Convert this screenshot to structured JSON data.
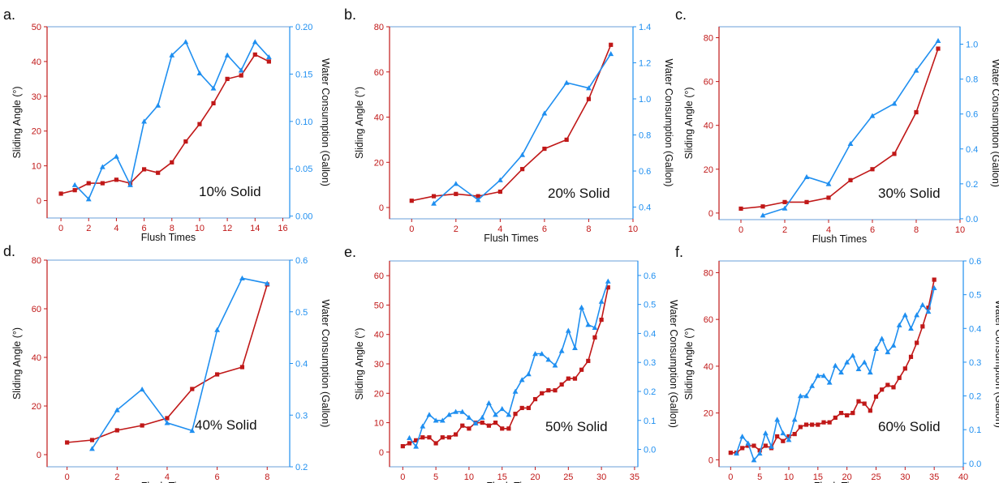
{
  "figure": {
    "colors": {
      "sliding": "#c01818",
      "water": "#1f8ff0",
      "left_axis": "#c01818",
      "right_axis": "#1f8ff0",
      "text": "#111111"
    }
  },
  "chart_data": [
    {
      "panel": "a.",
      "type": "line",
      "annotation": "10% Solid",
      "xlabel": "Flush Times",
      "ylabel": "Sliding Angle (°)",
      "y2label": "Water Consumption (Gallon)",
      "xlim": [
        -1,
        16.5
      ],
      "ylim": [
        -5,
        50
      ],
      "y2lim": [
        -0.002,
        0.2
      ],
      "xticks": [
        0,
        2,
        4,
        6,
        8,
        10,
        12,
        14,
        16
      ],
      "yticks": [
        0,
        10,
        20,
        30,
        40,
        50
      ],
      "y2ticks": [
        0.0,
        0.05,
        0.1,
        0.15,
        0.2
      ],
      "y2tick_labels": [
        "0.00",
        "0.05",
        "0.10",
        "0.15",
        "0.20"
      ],
      "series": [
        {
          "axis": "left",
          "marker": "square",
          "x": [
            0,
            1,
            2,
            3,
            4,
            5,
            6,
            7,
            8,
            9,
            10,
            11,
            12,
            13,
            14,
            15
          ],
          "y": [
            2,
            3,
            5,
            5,
            6,
            5,
            9,
            8,
            11,
            17,
            22,
            28,
            35,
            36,
            42,
            40
          ]
        },
        {
          "axis": "right",
          "marker": "triangle",
          "x": [
            1,
            2,
            3,
            4,
            5,
            6,
            7,
            8,
            9,
            10,
            11,
            12,
            13,
            14,
            15
          ],
          "y": [
            0.033,
            0.018,
            0.052,
            0.063,
            0.033,
            0.1,
            0.117,
            0.17,
            0.184,
            0.151,
            0.135,
            0.17,
            0.154,
            0.184,
            0.168
          ]
        }
      ]
    },
    {
      "panel": "b.",
      "type": "line",
      "annotation": "20% Solid",
      "xlabel": "Flush Times",
      "ylabel": "Sliding Angle (°)",
      "y2label": "Water Consumption (Gallon)",
      "xlim": [
        -1,
        10
      ],
      "ylim": [
        -5,
        80
      ],
      "y2lim": [
        0.335,
        1.4
      ],
      "xticks": [
        0,
        2,
        4,
        6,
        8,
        10
      ],
      "yticks": [
        0,
        20,
        40,
        60,
        80
      ],
      "y2ticks": [
        0.4,
        0.6,
        0.8,
        1.0,
        1.2,
        1.4
      ],
      "y2tick_labels": [
        "0.4",
        "0.6",
        "0.8",
        "1.0",
        "1.2",
        "1.4"
      ],
      "series": [
        {
          "axis": "left",
          "marker": "square",
          "x": [
            0,
            1,
            2,
            3,
            4,
            5,
            6,
            7,
            8,
            9
          ],
          "y": [
            3,
            5,
            6,
            5,
            7,
            17,
            26,
            30,
            48,
            72
          ]
        },
        {
          "axis": "right",
          "marker": "triangle",
          "x": [
            1,
            2,
            3,
            4,
            5,
            6,
            7,
            8,
            9
          ],
          "y": [
            0.42,
            0.53,
            0.44,
            0.55,
            0.69,
            0.92,
            1.09,
            1.06,
            1.25
          ]
        }
      ]
    },
    {
      "panel": "c.",
      "type": "line",
      "annotation": "30% Solid",
      "xlabel": "Flush Times",
      "ylabel": "Sliding Angle (°)",
      "y2label": "Water Consumption (Gallon)",
      "xlim": [
        -1,
        10
      ],
      "ylim": [
        -3,
        85
      ],
      "y2lim": [
        -0.005,
        1.1
      ],
      "xticks": [
        0,
        2,
        4,
        6,
        8,
        10
      ],
      "yticks": [
        0,
        20,
        40,
        60,
        80
      ],
      "y2ticks": [
        0.0,
        0.2,
        0.4,
        0.6,
        0.8,
        1.0
      ],
      "y2tick_labels": [
        "0.0",
        "0.2",
        "0.4",
        "0.6",
        "0.8",
        "1.0"
      ],
      "series": [
        {
          "axis": "left",
          "marker": "square",
          "x": [
            0,
            1,
            2,
            3,
            4,
            5,
            6,
            7,
            8,
            9
          ],
          "y": [
            2,
            3,
            5,
            5,
            7,
            15,
            20,
            27,
            46,
            75
          ]
        },
        {
          "axis": "right",
          "marker": "triangle",
          "x": [
            1,
            2,
            3,
            4,
            5,
            6,
            7,
            8,
            9
          ],
          "y": [
            0.02,
            0.06,
            0.24,
            0.2,
            0.43,
            0.59,
            0.66,
            0.85,
            1.02
          ]
        }
      ]
    },
    {
      "panel": "d.",
      "type": "line",
      "annotation": "40% Solid",
      "xlabel": "Flush Times",
      "ylabel": "Sliding Angle (°)",
      "y2label": "Water Consumption (Gallon)",
      "xlim": [
        -0.8,
        8.9
      ],
      "ylim": [
        -5,
        80
      ],
      "y2lim": [
        0.2,
        0.6
      ],
      "xticks": [
        0,
        2,
        4,
        6,
        8
      ],
      "yticks": [
        0,
        20,
        40,
        60,
        80
      ],
      "y2ticks": [
        0.2,
        0.3,
        0.4,
        0.5,
        0.6
      ],
      "y2tick_labels": [
        "0.2",
        "0.3",
        "0.4",
        "0.5",
        "0.6"
      ],
      "series": [
        {
          "axis": "left",
          "marker": "square",
          "x": [
            0,
            1,
            2,
            3,
            4,
            5,
            6,
            7,
            8
          ],
          "y": [
            5,
            6,
            10,
            12,
            15,
            27,
            33,
            36,
            70
          ]
        },
        {
          "axis": "right",
          "marker": "triangle",
          "x": [
            1,
            2,
            3,
            4,
            5,
            6,
            7,
            8
          ],
          "y": [
            0.235,
            0.31,
            0.35,
            0.285,
            0.27,
            0.465,
            0.565,
            0.555
          ]
        }
      ]
    },
    {
      "panel": "e.",
      "type": "line",
      "annotation": "50% Solid",
      "xlabel": "Flush Times",
      "ylabel": "Sliding Angle (°)",
      "y2label": "Water Consumption (Gallon)",
      "xlim": [
        -2,
        35.5
      ],
      "ylim": [
        -5,
        65
      ],
      "y2lim": [
        -0.06,
        0.65
      ],
      "xticks": [
        0,
        5,
        10,
        15,
        20,
        25,
        30,
        35
      ],
      "yticks": [
        0,
        10,
        20,
        30,
        40,
        50,
        60
      ],
      "y2ticks": [
        0.0,
        0.1,
        0.2,
        0.3,
        0.4,
        0.5,
        0.6
      ],
      "y2tick_labels": [
        "0.0",
        "0.1",
        "0.2",
        "0.3",
        "0.4",
        "0.5",
        "0.6"
      ],
      "series": [
        {
          "axis": "left",
          "marker": "square",
          "x": [
            0,
            1,
            2,
            3,
            4,
            5,
            6,
            7,
            8,
            9,
            10,
            11,
            12,
            13,
            14,
            15,
            16,
            17,
            18,
            19,
            20,
            21,
            22,
            23,
            24,
            25,
            26,
            27,
            28,
            29,
            30,
            31
          ],
          "y": [
            2,
            3,
            4,
            5,
            5,
            3,
            5,
            5,
            6,
            9,
            8,
            10,
            10,
            9,
            10,
            8,
            8,
            13,
            15,
            15,
            18,
            20,
            21,
            21,
            23,
            25,
            25,
            28,
            31,
            39,
            45,
            56
          ]
        },
        {
          "axis": "right",
          "marker": "triangle",
          "x": [
            1,
            2,
            3,
            4,
            5,
            6,
            7,
            8,
            9,
            10,
            11,
            12,
            13,
            14,
            15,
            16,
            17,
            18,
            19,
            20,
            21,
            22,
            23,
            24,
            25,
            26,
            27,
            28,
            29,
            30,
            31
          ],
          "y": [
            0.04,
            0.01,
            0.08,
            0.12,
            0.1,
            0.1,
            0.12,
            0.13,
            0.13,
            0.11,
            0.09,
            0.11,
            0.16,
            0.12,
            0.14,
            0.12,
            0.2,
            0.24,
            0.26,
            0.33,
            0.33,
            0.31,
            0.29,
            0.34,
            0.41,
            0.35,
            0.49,
            0.43,
            0.42,
            0.51,
            0.58
          ]
        }
      ]
    },
    {
      "panel": "f.",
      "type": "line",
      "annotation": "60% Solid",
      "xlabel": "Flush Times",
      "ylabel": "Sliding Angle (°)",
      "y2label": "Water Consumption (Gallon)",
      "xlim": [
        -2,
        40
      ],
      "ylim": [
        -3,
        85
      ],
      "y2lim": [
        -0.01,
        0.6
      ],
      "xticks": [
        0,
        5,
        10,
        15,
        20,
        25,
        30,
        35,
        40
      ],
      "yticks": [
        0,
        20,
        40,
        60,
        80
      ],
      "y2ticks": [
        0.0,
        0.1,
        0.2,
        0.3,
        0.4,
        0.5,
        0.6
      ],
      "y2tick_labels": [
        "0.0",
        "0.1",
        "0.2",
        "0.3",
        "0.4",
        "0.5",
        "0.6"
      ],
      "series": [
        {
          "axis": "left",
          "marker": "square",
          "x": [
            0,
            1,
            2,
            3,
            4,
            5,
            6,
            7,
            8,
            9,
            10,
            11,
            12,
            13,
            14,
            15,
            16,
            17,
            18,
            19,
            20,
            21,
            22,
            23,
            24,
            25,
            26,
            27,
            28,
            29,
            30,
            31,
            32,
            33,
            34,
            35
          ],
          "y": [
            3,
            3,
            5,
            6,
            6,
            4,
            6,
            5,
            10,
            8,
            10,
            11,
            14,
            15,
            15,
            15,
            16,
            16,
            18,
            20,
            19,
            20,
            25,
            24,
            21,
            27,
            30,
            32,
            31,
            35,
            39,
            44,
            50,
            57,
            65,
            77
          ]
        },
        {
          "axis": "right",
          "marker": "triangle",
          "x": [
            1,
            2,
            3,
            4,
            5,
            6,
            7,
            8,
            9,
            10,
            11,
            12,
            13,
            14,
            15,
            16,
            17,
            18,
            19,
            20,
            21,
            22,
            23,
            24,
            25,
            26,
            27,
            28,
            29,
            30,
            31,
            32,
            33,
            34,
            35
          ],
          "y": [
            0.03,
            0.08,
            0.06,
            0.01,
            0.03,
            0.09,
            0.05,
            0.13,
            0.09,
            0.07,
            0.13,
            0.2,
            0.2,
            0.23,
            0.26,
            0.26,
            0.24,
            0.29,
            0.27,
            0.3,
            0.32,
            0.28,
            0.3,
            0.27,
            0.34,
            0.37,
            0.33,
            0.35,
            0.41,
            0.44,
            0.4,
            0.44,
            0.47,
            0.45,
            0.52
          ]
        }
      ]
    }
  ]
}
